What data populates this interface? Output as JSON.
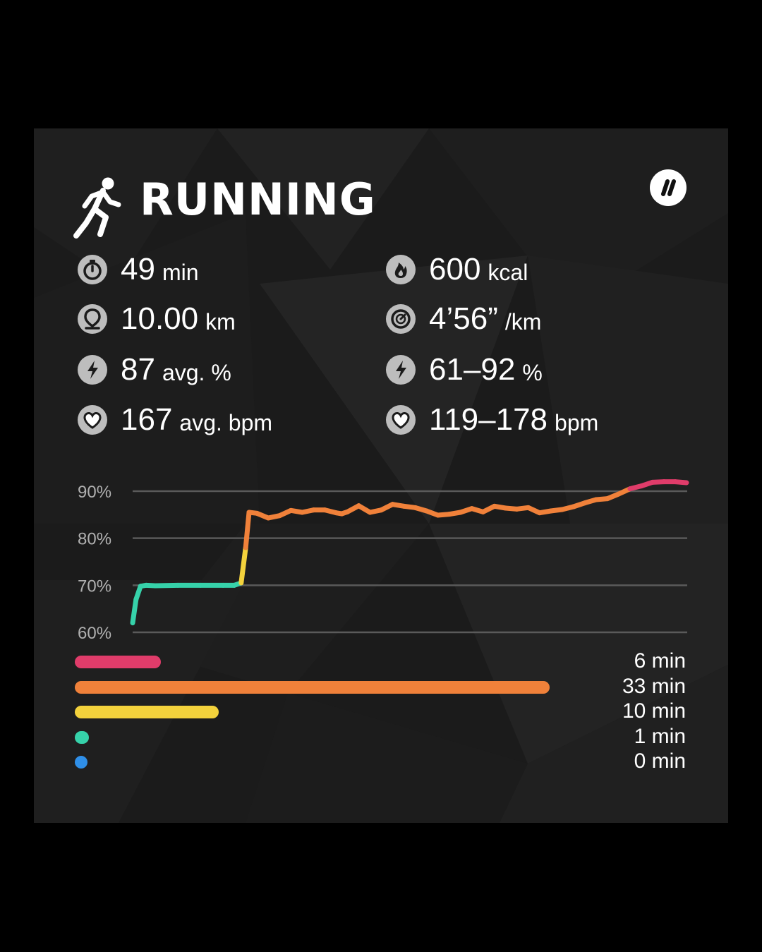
{
  "title": "RUNNING",
  "stats_left": [
    {
      "icon": "stopwatch-icon",
      "value": "49",
      "unit": "min"
    },
    {
      "icon": "location-pin-icon",
      "value": "10.00",
      "unit": "km"
    },
    {
      "icon": "lightning-icon",
      "value": "87",
      "unit": "avg. %"
    },
    {
      "icon": "heart-icon",
      "value": "167",
      "unit": "avg. bpm"
    }
  ],
  "stats_right": [
    {
      "icon": "flame-icon",
      "value": "600",
      "unit": "kcal"
    },
    {
      "icon": "speedometer-icon",
      "value": "4’56”",
      "unit": "/km"
    },
    {
      "icon": "lightning-icon",
      "value": "61–92",
      "unit": "%"
    },
    {
      "icon": "heart-icon",
      "value": "119–178",
      "unit": "bpm"
    }
  ],
  "chart_data": {
    "type": "line",
    "y_ticks": [
      "90%",
      "80%",
      "70%",
      "60%"
    ],
    "ylim": [
      60,
      90
    ],
    "x_minutes": 49,
    "series": [
      {
        "x": [
          0,
          0.3,
          0.7,
          1.2,
          2,
          4,
          6,
          8,
          9,
          9.6,
          10,
          10.3,
          11,
          12,
          13,
          14,
          15,
          16,
          17,
          18,
          18.5,
          19,
          20,
          21,
          22,
          23,
          24,
          25,
          26,
          27,
          28,
          29,
          30,
          31,
          32,
          33,
          34,
          35,
          36,
          37,
          38,
          39,
          40,
          41,
          42,
          43,
          44,
          45,
          46,
          47,
          48,
          49
        ],
        "y": [
          62,
          67,
          69.8,
          70,
          69.9,
          70,
          70,
          70,
          70,
          70.5,
          78,
          85.5,
          85.3,
          84.3,
          84.8,
          85.9,
          85.5,
          86,
          86,
          85.4,
          85.2,
          85.6,
          86.9,
          85.5,
          86,
          87.2,
          86.8,
          86.5,
          85.8,
          84.9,
          85.1,
          85.5,
          86.3,
          85.6,
          86.8,
          86.4,
          86.2,
          86.5,
          85.4,
          85.8,
          86.1,
          86.7,
          87.5,
          88.2,
          88.4,
          89.4,
          90.5,
          91.1,
          91.9,
          92,
          92,
          91.8
        ]
      }
    ],
    "zone_colors": {
      "z1": "#2f8fe8",
      "z2": "#36d2aa",
      "z3": "#f3d23c",
      "z4": "#f0813a",
      "z5": "#e03c6a"
    }
  },
  "zones": [
    {
      "label": "6 min",
      "minutes": 6,
      "color": "#e03c6a"
    },
    {
      "label": "33 min",
      "minutes": 33,
      "color": "#f0813a"
    },
    {
      "label": "10 min",
      "minutes": 10,
      "color": "#f3d23c"
    },
    {
      "label": "1 min",
      "minutes": 1,
      "color": "#36d2aa"
    },
    {
      "label": "0 min",
      "minutes": 0,
      "color": "#2f8fe8"
    }
  ]
}
